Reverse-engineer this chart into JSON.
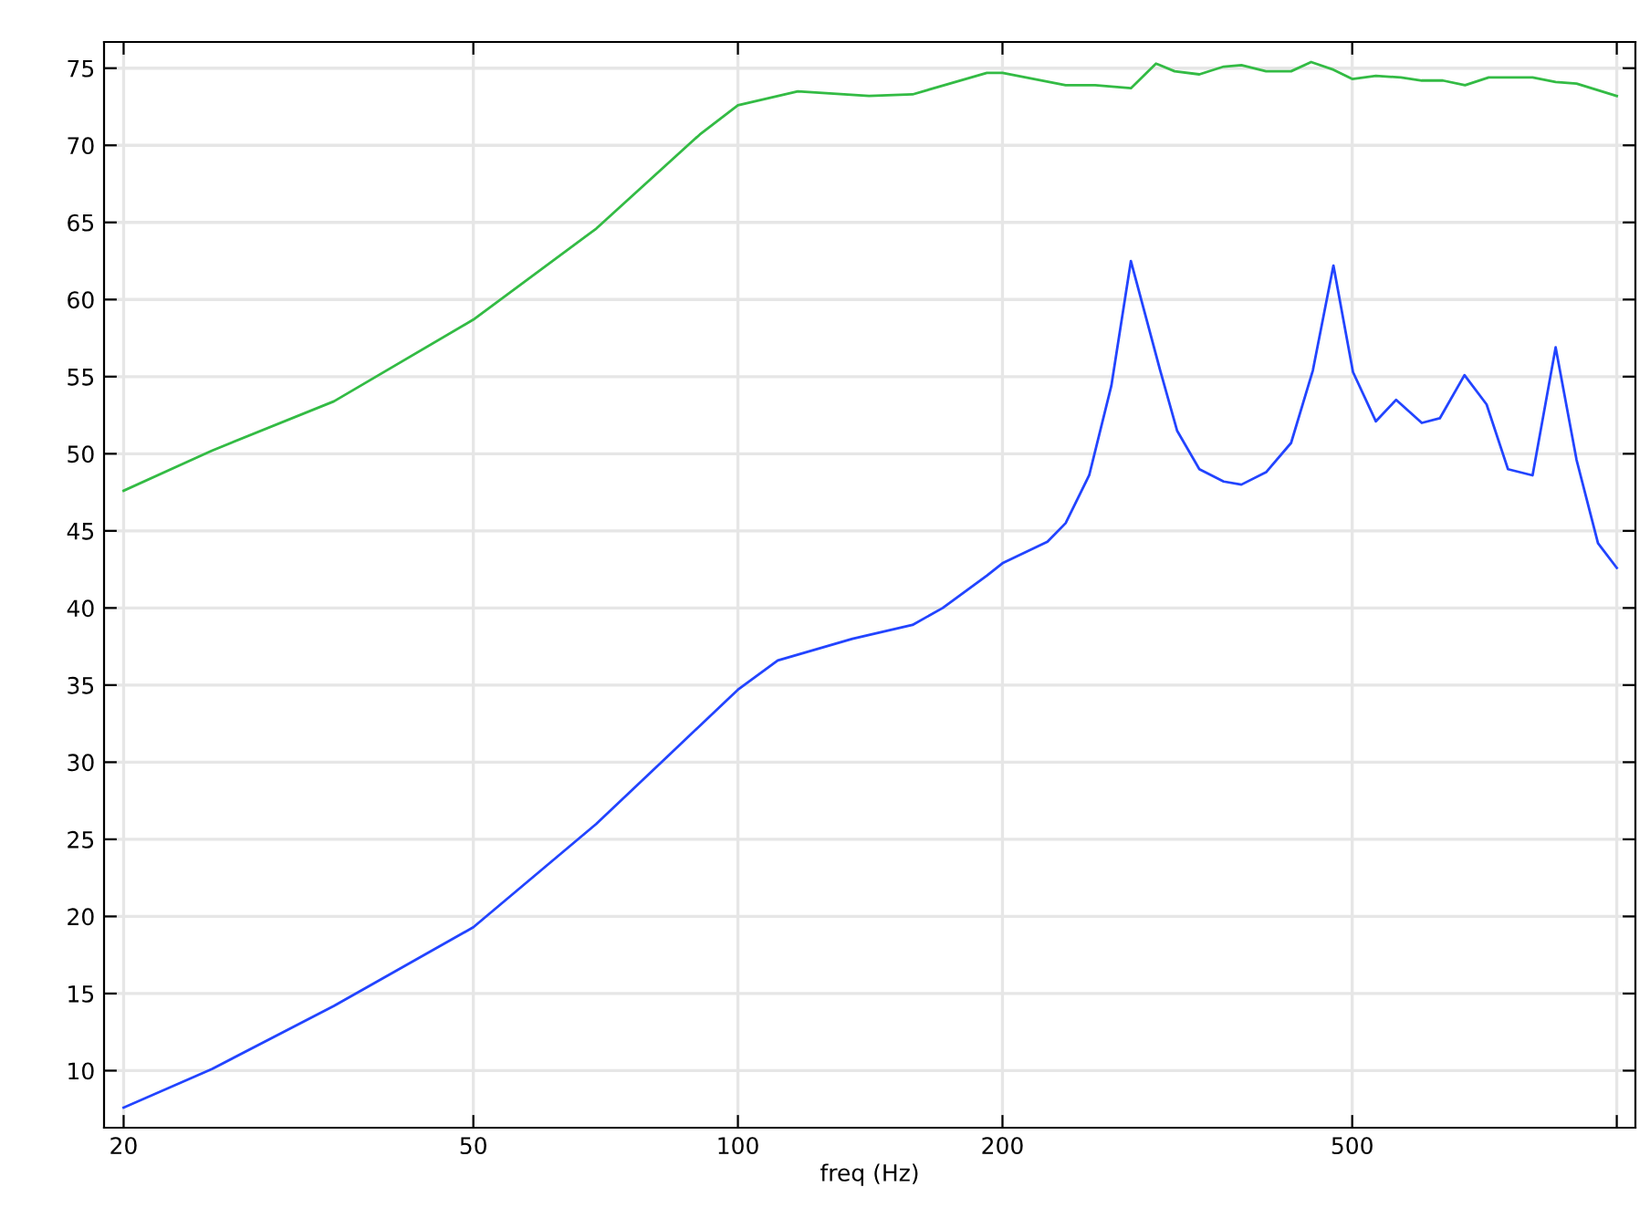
{
  "chart_data": {
    "type": "line",
    "xlabel": "freq (Hz)",
    "log": "x",
    "grid": true,
    "xlim": [
      19,
      1050
    ],
    "xticks": [
      20,
      50,
      100,
      200,
      500,
      {
        "value": 1000,
        "label": null
      }
    ],
    "ylim": [
      6.3,
      76.7
    ],
    "yticks": [
      10,
      15,
      20,
      25,
      30,
      35,
      40,
      45,
      50,
      55,
      60,
      65,
      70,
      75
    ],
    "series": [
      {
        "color": "#33bb44",
        "x": [
          20,
          25.2,
          34.7,
          50,
          69,
          90.5,
          100,
          117,
          141,
          158,
          192,
          200,
          236,
          255,
          280,
          299,
          314,
          335,
          357,
          374,
          399,
          426,
          449,
          476,
          500,
          532,
          568,
          600,
          634,
          672,
          715,
          802,
          852,
          900,
          1000
        ],
        "values": [
          47.6,
          50.2,
          53.4,
          58.7,
          64.6,
          70.7,
          72.6,
          73.5,
          73.2,
          73.3,
          74.7,
          74.7,
          73.9,
          73.9,
          73.7,
          75.3,
          74.8,
          74.6,
          75.1,
          75.2,
          74.8,
          74.8,
          75.4,
          74.9,
          74.3,
          74.5,
          74.4,
          74.2,
          74.2,
          73.9,
          74.4,
          74.4,
          74.1,
          74.0,
          73.2
        ]
      },
      {
        "color": "#2244ff",
        "x": [
          20,
          25.2,
          34.7,
          50,
          69,
          83.6,
          100,
          111,
          135,
          158,
          171,
          192,
          200,
          225,
          236,
          251,
          266,
          280,
          302,
          316,
          335,
          357,
          374,
          399,
          426,
          451,
          476,
          501,
          532,
          561,
          600,
          629,
          671,
          711,
          752,
          802,
          852,
          900,
          952,
          1000
        ],
        "values": [
          7.6,
          10.1,
          14.2,
          19.3,
          26.0,
          30.5,
          34.7,
          36.6,
          38.0,
          38.9,
          40.0,
          42.1,
          42.9,
          44.3,
          45.5,
          48.6,
          54.4,
          62.5,
          55.5,
          51.5,
          49.0,
          48.2,
          48.0,
          48.8,
          50.7,
          55.4,
          62.2,
          55.3,
          52.1,
          53.5,
          52.0,
          52.3,
          55.1,
          53.2,
          49.0,
          48.6,
          56.9,
          49.6,
          44.2,
          42.6
        ]
      }
    ]
  }
}
